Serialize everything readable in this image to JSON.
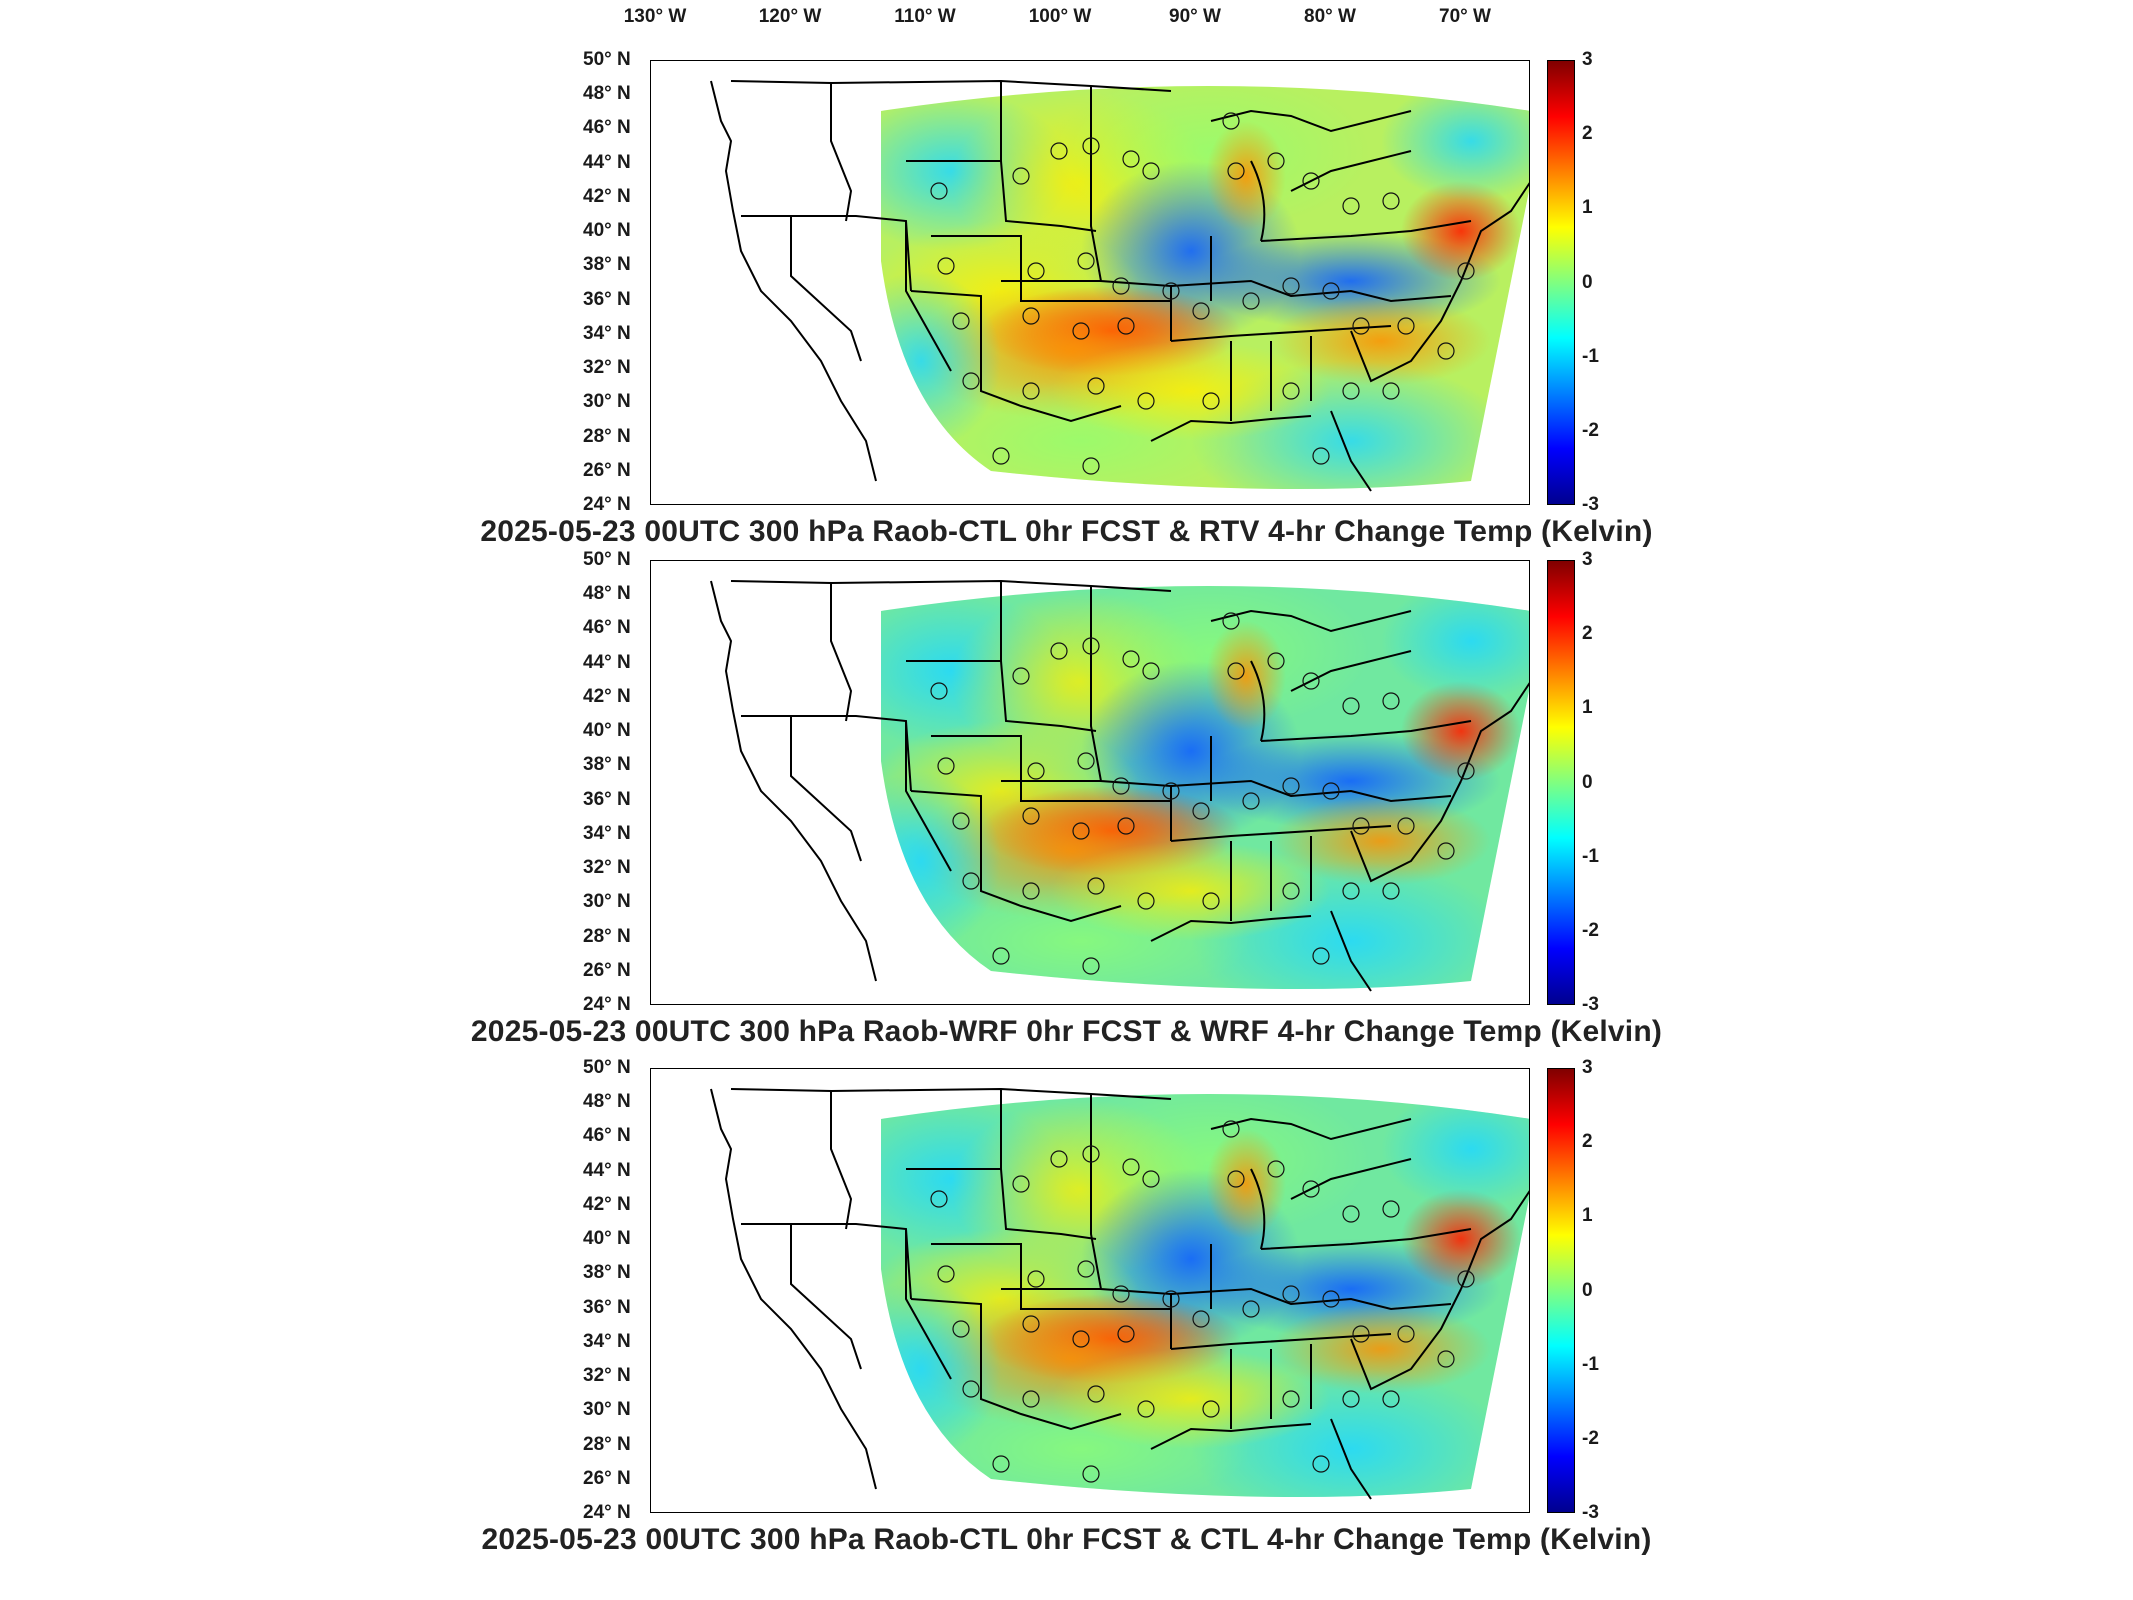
{
  "longitude_labels": [
    "130° W",
    "120° W",
    "110° W",
    "100° W",
    "90° W",
    "80° W",
    "70° W"
  ],
  "latitude_labels": [
    "50° N",
    "48° N",
    "46° N",
    "44° N",
    "42° N",
    "40° N",
    "38° N",
    "36° N",
    "34° N",
    "32° N",
    "30° N",
    "28° N",
    "26° N",
    "24° N"
  ],
  "colorbar": {
    "ticks": [
      "3",
      "2",
      "1",
      "0",
      "-1",
      "-2",
      "-3"
    ],
    "colors": [
      "#00008f",
      "#0000ff",
      "#0080ff",
      "#00ffff",
      "#80ff80",
      "#ffff00",
      "#ff8000",
      "#ff0000",
      "#800000"
    ],
    "min": -3,
    "max": 3
  },
  "panels": [
    {
      "title": "2025-05-23 00UTC 300 hPa Raob-CTL 0hr FCST & RTV 4-hr Change Temp (Kelvin)"
    },
    {
      "title": "2025-05-23 00UTC 300 hPa Raob-WRF 0hr FCST & WRF 4-hr Change Temp (Kelvin)"
    },
    {
      "title": "2025-05-23 00UTC 300 hPa Raob-CTL 0hr FCST & CTL 4-hr Change Temp (Kelvin)"
    }
  ]
}
